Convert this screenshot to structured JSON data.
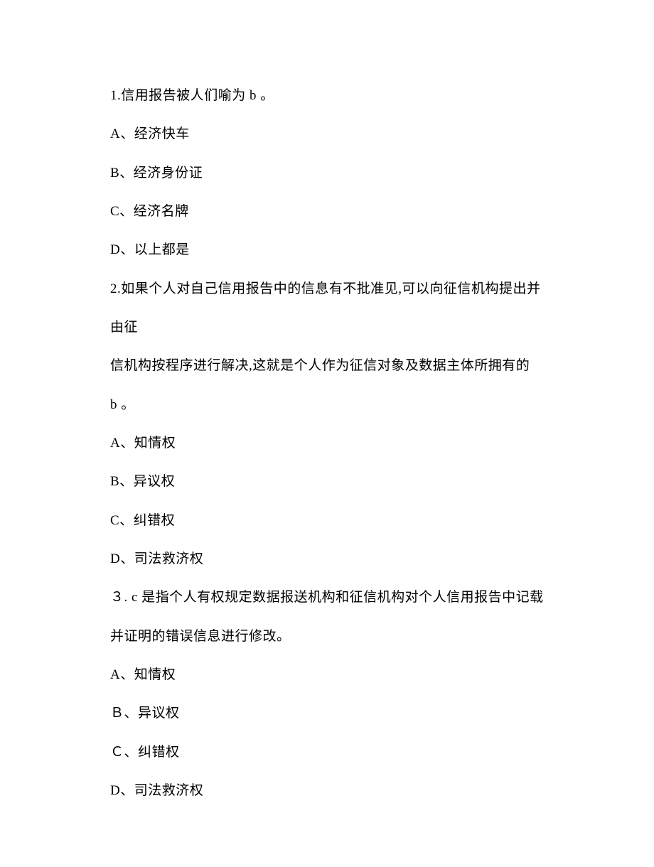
{
  "q1": {
    "stem": "1.信用报告被人们喻为 b 。",
    "optA": "A、经济快车",
    "optB": "B、经济身份证",
    "optC": "C、经济名牌",
    "optD": "D、以上都是"
  },
  "q2": {
    "stem1": "2.如果个人对自己信用报告中的信息有不批准见,可以向征信机构提出并由征",
    "stem2": "信机构按程序进行解决,这就是个人作为征信对象及数据主体所拥有的",
    "stem3": "b 。",
    "optA": "A、知情权",
    "optB": "B、异议权",
    "optC": "C、纠错权",
    "optD": "D、司法救济权"
  },
  "q3": {
    "stem1": "３. c 是指个人有权规定数据报送机构和征信机构对个人信用报告中记载",
    "stem2": "并证明的错误信息进行修改。",
    "optA": "A、知情权",
    "optB": "Ｂ、异议权",
    "optC": "Ｃ、纠错权",
    "optD": "D、司法救济权"
  }
}
